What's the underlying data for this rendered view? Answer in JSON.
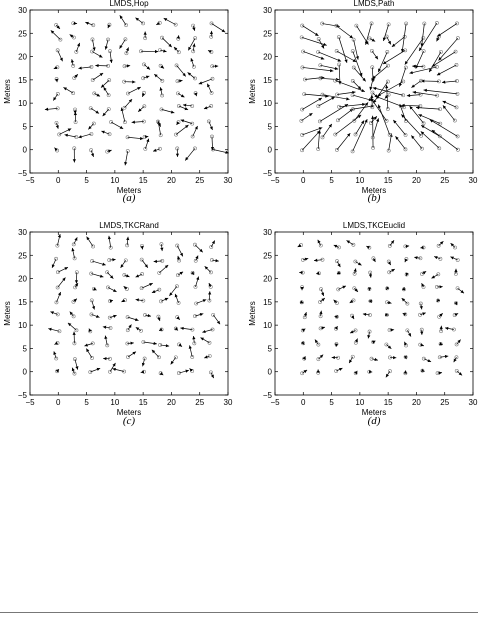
{
  "page": {
    "background": "#ffffff"
  },
  "style": {
    "arrow_color": "#000000",
    "node_color": "#777777",
    "axis_color": "#000000"
  },
  "chart_data": [
    {
      "type": "scatter",
      "title": "LMDS,Hop",
      "caption": "(a)",
      "xlabel": "Meters",
      "ylabel": "Meters",
      "xlim": [
        -5,
        30
      ],
      "ylim": [
        -5,
        30
      ],
      "xticks": [
        "−5",
        "0",
        "5",
        "10",
        "15",
        "20",
        "25",
        "30"
      ],
      "yticks": [
        "−5",
        "0",
        "5",
        "10",
        "15",
        "20",
        "25",
        "30"
      ],
      "grid": false,
      "error_scale": 1.0,
      "error_seed": 11
    },
    {
      "type": "scatter",
      "title": "LMDS,Path",
      "caption": "(b)",
      "xlabel": "Meters",
      "ylabel": "Meters",
      "xlim": [
        -5,
        30
      ],
      "ylim": [
        -5,
        30
      ],
      "xticks": [
        "−5",
        "0",
        "5",
        "10",
        "15",
        "20",
        "25",
        "30"
      ],
      "yticks": [
        "−5",
        "0",
        "5",
        "10",
        "15",
        "20",
        "25",
        "30"
      ],
      "grid": false,
      "error_scale": 1.8,
      "error_seed": 23
    },
    {
      "type": "scatter",
      "title": "LMDS,TKCRand",
      "caption": "(c)",
      "xlabel": "Meters",
      "ylabel": "Meters",
      "xlim": [
        -5,
        30
      ],
      "ylim": [
        -5,
        30
      ],
      "xticks": [
        "−5",
        "0",
        "5",
        "10",
        "15",
        "20",
        "25",
        "30"
      ],
      "yticks": [
        "−5",
        "0",
        "5",
        "10",
        "15",
        "20",
        "25",
        "30"
      ],
      "grid": false,
      "error_scale": 0.8,
      "error_seed": 37
    },
    {
      "type": "scatter",
      "title": "LMDS,TKCEuclid",
      "caption": "(d)",
      "xlabel": "Meters",
      "ylabel": "Meters",
      "xlim": [
        -5,
        30
      ],
      "ylim": [
        -5,
        30
      ],
      "xticks": [
        "−5",
        "0",
        "5",
        "10",
        "15",
        "20",
        "25",
        "30"
      ],
      "yticks": [
        "−5",
        "0",
        "5",
        "10",
        "15",
        "20",
        "25",
        "30"
      ],
      "grid": false,
      "error_scale": 0.5,
      "error_seed": 53
    }
  ]
}
